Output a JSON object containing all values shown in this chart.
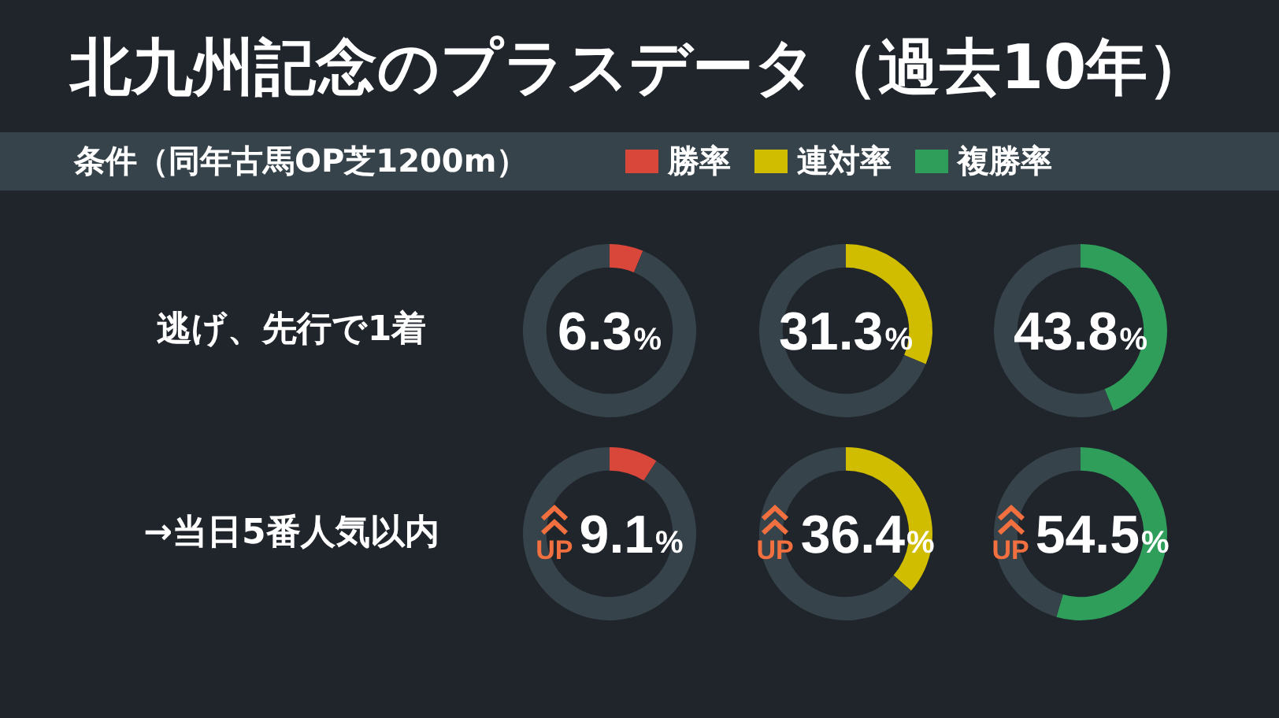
{
  "chart_data": [
    {
      "type": "other",
      "title": "北九州記念のプラスデータ（過去10年）",
      "subtitle": "条件（同年古馬OP芝1200m）",
      "annotations": [
        "逃げ、先行で1着",
        "→当日5番人気以内"
      ]
    },
    {
      "type": "donut",
      "categories": [
        "勝率",
        null
      ],
      "values": [
        6.3,
        93.7
      ],
      "colors": [
        "#d9463a",
        "#37434b"
      ],
      "annotations": [
        "6.3%"
      ],
      "legend": "top"
    },
    {
      "type": "donut",
      "categories": [
        "連対率",
        null
      ],
      "values": [
        31.3,
        68.7
      ],
      "colors": [
        "#d1bd00",
        "#37434b"
      ],
      "annotations": [
        "31.3%"
      ],
      "legend": "top"
    },
    {
      "type": "donut",
      "categories": [
        "複勝率",
        null
      ],
      "values": [
        43.8,
        56.2
      ],
      "colors": [
        "#2f9e5a",
        "#37434b"
      ],
      "annotations": [
        "43.8%"
      ],
      "legend": "top"
    },
    {
      "type": "donut",
      "categories": [
        null,
        null
      ],
      "values": [
        9.1,
        90.9
      ],
      "colors": [
        "#d9463a",
        "#37434b"
      ],
      "annotations": [
        "UP",
        "9.1%"
      ]
    },
    {
      "type": "donut",
      "categories": [
        null,
        null
      ],
      "values": [
        36.4,
        63.6
      ],
      "colors": [
        "#d1bd00",
        "#37434b"
      ],
      "annotations": [
        "UP",
        "36.4%"
      ]
    },
    {
      "type": "donut",
      "categories": [
        null,
        null
      ],
      "values": [
        54.5,
        45.5
      ],
      "colors": [
        "#2f9e5a",
        "#37434b"
      ],
      "annotations": [
        "UP",
        "54.5%"
      ]
    }
  ]
}
